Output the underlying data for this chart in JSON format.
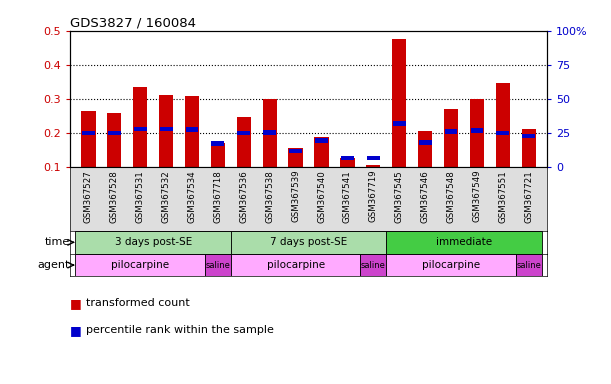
{
  "title": "GDS3827 / 160084",
  "samples": [
    "GSM367527",
    "GSM367528",
    "GSM367531",
    "GSM367532",
    "GSM367534",
    "GSM367718",
    "GSM367536",
    "GSM367538",
    "GSM367539",
    "GSM367540",
    "GSM367541",
    "GSM367719",
    "GSM367545",
    "GSM367546",
    "GSM367548",
    "GSM367549",
    "GSM367551",
    "GSM367721"
  ],
  "red_values": [
    0.265,
    0.258,
    0.335,
    0.312,
    0.31,
    0.172,
    0.247,
    0.3,
    0.155,
    0.19,
    0.128,
    0.107,
    0.475,
    0.205,
    0.27,
    0.3,
    0.347,
    0.213
  ],
  "blue_values": [
    0.2,
    0.2,
    0.212,
    0.212,
    0.21,
    0.17,
    0.2,
    0.202,
    0.148,
    0.178,
    0.127,
    0.127,
    0.228,
    0.172,
    0.205,
    0.208,
    0.2,
    0.192
  ],
  "ylim_left": [
    0.1,
    0.5
  ],
  "ylim_right": [
    0,
    100
  ],
  "yticks_left": [
    0.1,
    0.2,
    0.3,
    0.4,
    0.5
  ],
  "yticks_right": [
    0,
    25,
    50,
    75,
    100
  ],
  "ytick_labels_right": [
    "0",
    "25",
    "50",
    "75",
    "100%"
  ],
  "red_color": "#CC0000",
  "blue_color": "#0000CC",
  "bar_width": 0.55,
  "bg_color": "#FFFFFF",
  "legend_red": "transformed count",
  "legend_blue": "percentile rank within the sample",
  "left_label_color": "#CC0000",
  "right_label_color": "#0000CC",
  "time_data": [
    {
      "start": 0,
      "end": 5,
      "color": "#AADDAA",
      "label": "3 days post-SE"
    },
    {
      "start": 6,
      "end": 11,
      "color": "#AADDAA",
      "label": "7 days post-SE"
    },
    {
      "start": 12,
      "end": 17,
      "color": "#44CC44",
      "label": "immediate"
    }
  ],
  "agent_data": [
    {
      "start": 0,
      "end": 4,
      "color": "#FFAAFF",
      "label": "pilocarpine"
    },
    {
      "start": 5,
      "end": 5,
      "color": "#CC44CC",
      "label": "saline"
    },
    {
      "start": 6,
      "end": 10,
      "color": "#FFAAFF",
      "label": "pilocarpine"
    },
    {
      "start": 11,
      "end": 11,
      "color": "#CC44CC",
      "label": "saline"
    },
    {
      "start": 12,
      "end": 16,
      "color": "#FFAAFF",
      "label": "pilocarpine"
    },
    {
      "start": 17,
      "end": 17,
      "color": "#CC44CC",
      "label": "saline"
    }
  ]
}
